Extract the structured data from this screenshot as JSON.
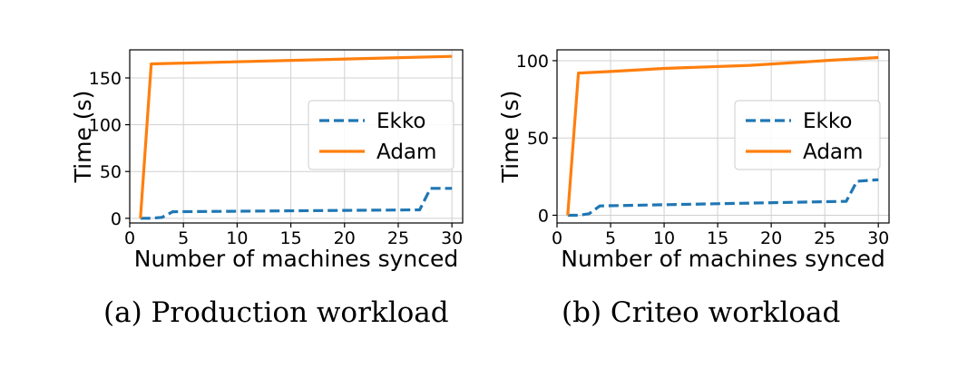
{
  "charts": [
    {
      "caption": "(a) Production workload",
      "chart_data": {
        "type": "line",
        "xlabel": "Number of machines synced",
        "ylabel": "Time (s)",
        "xlim": [
          0,
          31
        ],
        "ylim": [
          -5,
          180
        ],
        "xticks": [
          0,
          5,
          10,
          15,
          20,
          25,
          30
        ],
        "yticks": [
          0,
          50,
          100,
          150
        ],
        "grid": true,
        "legend_position": "center-right",
        "series": [
          {
            "name": "Ekko",
            "color": "#1f77b4",
            "dash": "dashed",
            "x": [
              1,
              2,
              3,
              4,
              27,
              28,
              30
            ],
            "y": [
              0,
              0,
              1,
              7,
              9,
              32,
              32
            ]
          },
          {
            "name": "Adam",
            "color": "#ff7f0e",
            "dash": "solid",
            "x": [
              1,
              2,
              30
            ],
            "y": [
              0,
              165,
              173
            ]
          }
        ]
      }
    },
    {
      "caption": "(b) Criteo workload",
      "chart_data": {
        "type": "line",
        "xlabel": "Number of machines synced",
        "ylabel": "Time (s)",
        "xlim": [
          0,
          31
        ],
        "ylim": [
          -5,
          107
        ],
        "xticks": [
          0,
          5,
          10,
          15,
          20,
          25,
          30
        ],
        "yticks": [
          0,
          50,
          100
        ],
        "grid": true,
        "legend_position": "center-right",
        "series": [
          {
            "name": "Ekko",
            "color": "#1f77b4",
            "dash": "dashed",
            "x": [
              1,
              2,
              3,
              4,
              27,
              28,
              30
            ],
            "y": [
              0,
              0,
              1,
              6,
              9,
              22,
              23
            ]
          },
          {
            "name": "Adam",
            "color": "#ff7f0e",
            "dash": "solid",
            "x": [
              1,
              2,
              5,
              10,
              18,
              25,
              30
            ],
            "y": [
              0,
              92,
              93,
              95,
              97,
              100,
              102
            ]
          }
        ]
      }
    }
  ]
}
